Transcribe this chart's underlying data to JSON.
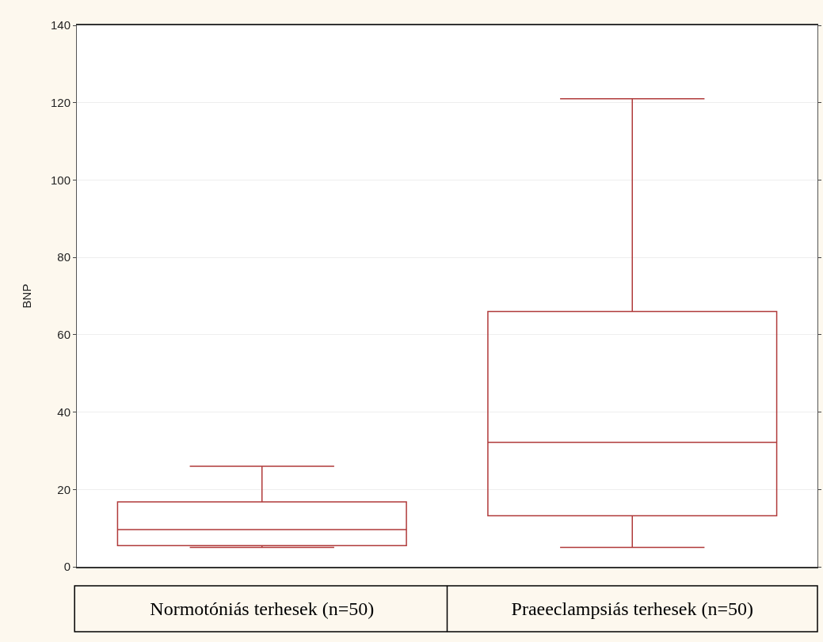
{
  "chart_data": {
    "type": "box",
    "ylabel": "BNP",
    "categories": [
      "Normotóniás terhesek (n=50)",
      "Praeeclampsiás terhesek (n=50)"
    ],
    "boxes": [
      {
        "low": 5,
        "q1": 5.5,
        "median": 9.6,
        "q3": 16.8,
        "high": 26
      },
      {
        "low": 5,
        "q1": 13.2,
        "median": 32.2,
        "q3": 66,
        "high": 121
      }
    ],
    "color": "#b03a3a",
    "ylim": [
      0,
      140
    ],
    "yticks": [
      0,
      20,
      40,
      60,
      80,
      100,
      120,
      140
    ],
    "grid": "y"
  }
}
